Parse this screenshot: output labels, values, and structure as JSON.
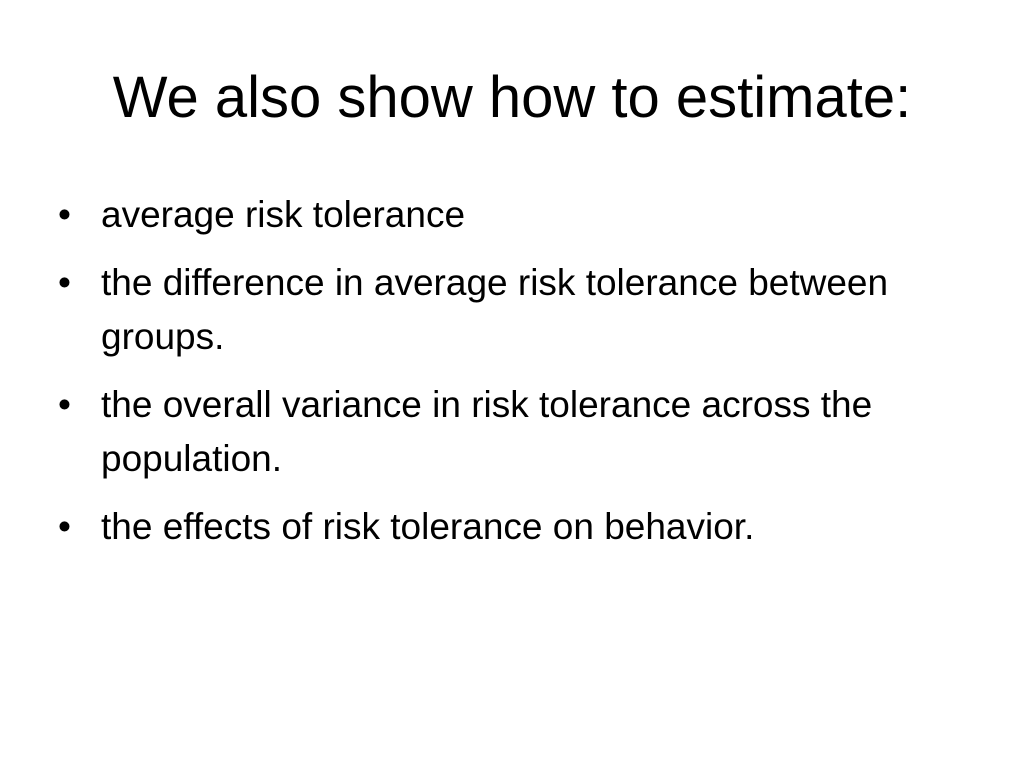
{
  "slide": {
    "title": "We also show how to estimate:",
    "bullet_symbol": "•",
    "bullets": [
      "average risk tolerance",
      "the difference in average risk tolerance between groups.",
      "the overall variance in risk tolerance across the population.",
      "the effects of risk tolerance on behavior."
    ]
  }
}
